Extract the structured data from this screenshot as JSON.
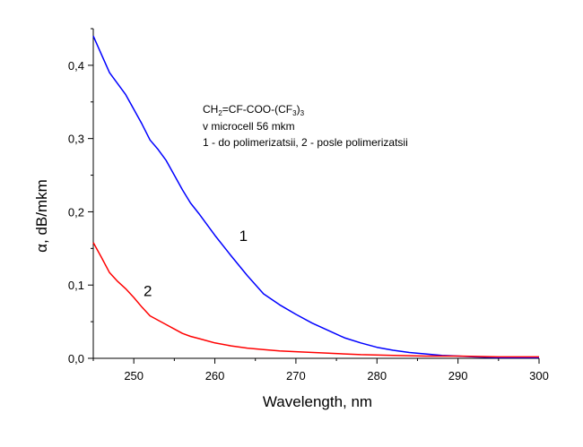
{
  "chart_data": {
    "type": "line",
    "xlabel": "Wavelength, nm",
    "ylabel": "α, dB/mkm",
    "xlim": [
      245,
      300
    ],
    "ylim": [
      0,
      0.45
    ],
    "x_ticks": [
      {
        "value": 250,
        "label": "250"
      },
      {
        "value": 260,
        "label": "260"
      },
      {
        "value": 270,
        "label": "270"
      },
      {
        "value": 280,
        "label": "280"
      },
      {
        "value": 290,
        "label": "290"
      },
      {
        "value": 300,
        "label": "300"
      }
    ],
    "y_ticks": [
      {
        "value": 0.0,
        "label": "0,0"
      },
      {
        "value": 0.1,
        "label": "0,1"
      },
      {
        "value": 0.2,
        "label": "0,2"
      },
      {
        "value": 0.3,
        "label": "0,3"
      },
      {
        "value": 0.4,
        "label": "0,4"
      }
    ],
    "grid": false,
    "annotation": {
      "formula": {
        "p1": "CH",
        "s1": "2",
        "p2": "=CF-COO-(CF",
        "s2": "3",
        "p3": ")",
        "s3": "3"
      },
      "line2": "v microcell 56 mkm",
      "line3": "1 - do polimerizatsii, 2 - posle polimerizatsii"
    },
    "series": [
      {
        "name": "1",
        "color": "#0000ff",
        "label_at": [
          263,
          0.16
        ],
        "points": [
          [
            245,
            0.44
          ],
          [
            246,
            0.415
          ],
          [
            247,
            0.39
          ],
          [
            248,
            0.375
          ],
          [
            249,
            0.36
          ],
          [
            250,
            0.34
          ],
          [
            251,
            0.32
          ],
          [
            252,
            0.298
          ],
          [
            253,
            0.285
          ],
          [
            254,
            0.27
          ],
          [
            255,
            0.25
          ],
          [
            256,
            0.23
          ],
          [
            257,
            0.212
          ],
          [
            258,
            0.198
          ],
          [
            259,
            0.183
          ],
          [
            260,
            0.168
          ],
          [
            262,
            0.14
          ],
          [
            264,
            0.113
          ],
          [
            266,
            0.088
          ],
          [
            268,
            0.073
          ],
          [
            270,
            0.06
          ],
          [
            272,
            0.048
          ],
          [
            274,
            0.038
          ],
          [
            276,
            0.028
          ],
          [
            278,
            0.021
          ],
          [
            280,
            0.015
          ],
          [
            282,
            0.011
          ],
          [
            284,
            0.008
          ],
          [
            286,
            0.006
          ],
          [
            288,
            0.004
          ],
          [
            290,
            0.003
          ],
          [
            292,
            0.002
          ],
          [
            295,
            0.001
          ],
          [
            300,
            0.001
          ]
        ]
      },
      {
        "name": "2",
        "color": "#ff0000",
        "label_at": [
          251.2,
          0.085
        ],
        "points": [
          [
            245,
            0.158
          ],
          [
            246,
            0.138
          ],
          [
            247,
            0.117
          ],
          [
            248,
            0.105
          ],
          [
            249,
            0.095
          ],
          [
            250,
            0.083
          ],
          [
            251,
            0.07
          ],
          [
            252,
            0.058
          ],
          [
            253,
            0.052
          ],
          [
            254,
            0.046
          ],
          [
            255,
            0.04
          ],
          [
            256,
            0.034
          ],
          [
            257,
            0.03
          ],
          [
            258,
            0.027
          ],
          [
            260,
            0.021
          ],
          [
            262,
            0.017
          ],
          [
            264,
            0.014
          ],
          [
            266,
            0.012
          ],
          [
            268,
            0.01
          ],
          [
            270,
            0.009
          ],
          [
            274,
            0.007
          ],
          [
            278,
            0.005
          ],
          [
            282,
            0.004
          ],
          [
            286,
            0.003
          ],
          [
            290,
            0.003
          ],
          [
            295,
            0.002
          ],
          [
            300,
            0.002
          ]
        ]
      }
    ]
  }
}
